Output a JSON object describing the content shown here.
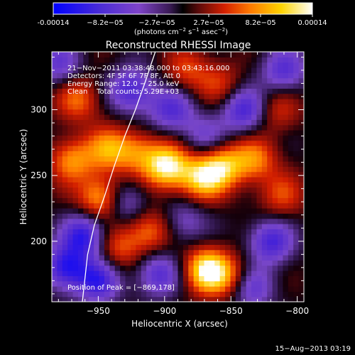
{
  "colorbar": {
    "tick_labels": [
      "-0.00014",
      "−8.2e−05",
      "−2.7e−05",
      "2.7e−05",
      "8.2e−05",
      "0.00014"
    ],
    "units_prefix": "(photons cm",
    "units_exp1": "−2",
    "units_mid": " s",
    "units_exp2": "−1",
    "units_mid2": " asec",
    "units_exp3": "−2",
    "units_suffix": ")"
  },
  "annotations": {
    "time_range": "21−Nov−2011 03:38:48.000 to 03:43:16.000",
    "detectors": "Detectors: 4F 5F 6F 7F 8F, Att 0",
    "energy": "Energy Range: 12.0 − 25.0 keV",
    "clean": "Clean    Total counts: 5.29E+03",
    "peak": "Position of Peak = [−869,178]"
  },
  "footer": {
    "date": "15−Aug−2013 03:19"
  },
  "chart_data": {
    "type": "heatmap",
    "title": "Reconstructed RHESSI Image",
    "xlabel": "Heliocentric X (arcsec)",
    "ylabel": "Heliocentric Y (arcsec)",
    "xlim": [
      -985,
      -795
    ],
    "ylim": [
      154,
      344
    ],
    "xticks": [
      -950,
      -900,
      -850,
      -800
    ],
    "xtick_labels": [
      "−950",
      "−900",
      "−850",
      "−800"
    ],
    "yticks": [
      200,
      250,
      300
    ],
    "ytick_labels": [
      "200",
      "250",
      "300"
    ],
    "colorbar_range": [
      -0.00014,
      0.00014
    ],
    "peak_position": [
      -869,
      178
    ],
    "limb_curve": {
      "x": [
        -907,
        -915,
        -922,
        -930,
        -938,
        -945,
        -953,
        -958,
        -962
      ],
      "y": [
        344,
        320,
        300,
        280,
        257,
        235,
        212,
        190,
        154
      ]
    },
    "sources": [
      {
        "x": -868,
        "y": 178,
        "value": 1.0
      },
      {
        "x": -898,
        "y": 257,
        "value": 0.95
      },
      {
        "x": -872,
        "y": 248,
        "value": 0.75
      },
      {
        "x": -856,
        "y": 258,
        "value": 0.7
      },
      {
        "x": -970,
        "y": 262,
        "value": 0.6
      },
      {
        "x": -948,
        "y": 233,
        "value": 0.75
      },
      {
        "x": -912,
        "y": 208,
        "value": 0.55
      },
      {
        "x": -935,
        "y": 195,
        "value": 0.45
      },
      {
        "x": -942,
        "y": 270,
        "value": 0.6
      },
      {
        "x": -883,
        "y": 330,
        "value": 0.4
      },
      {
        "x": -858,
        "y": 320,
        "value": 0.35
      },
      {
        "x": -815,
        "y": 300,
        "value": 0.35
      },
      {
        "x": -832,
        "y": 262,
        "value": 0.55
      },
      {
        "x": -812,
        "y": 235,
        "value": 0.4
      },
      {
        "x": -848,
        "y": 172,
        "value": 0.45
      },
      {
        "x": -965,
        "y": 308,
        "value": 0.5
      },
      {
        "x": -920,
        "y": 268,
        "value": 0.5
      },
      {
        "x": -960,
        "y": 205,
        "value": -0.8
      },
      {
        "x": -975,
        "y": 180,
        "value": -0.8
      },
      {
        "x": -950,
        "y": 170,
        "value": -0.7
      },
      {
        "x": -930,
        "y": 230,
        "value": -0.5
      },
      {
        "x": -905,
        "y": 175,
        "value": -0.6
      },
      {
        "x": -925,
        "y": 315,
        "value": -0.7
      },
      {
        "x": -895,
        "y": 300,
        "value": -0.6
      },
      {
        "x": -840,
        "y": 300,
        "value": -0.7
      },
      {
        "x": -810,
        "y": 330,
        "value": -0.6
      },
      {
        "x": -870,
        "y": 280,
        "value": -0.4
      },
      {
        "x": -820,
        "y": 200,
        "value": -0.7
      },
      {
        "x": -835,
        "y": 165,
        "value": -0.6
      },
      {
        "x": -980,
        "y": 335,
        "value": -0.5
      },
      {
        "x": -885,
        "y": 215,
        "value": -0.4
      }
    ]
  }
}
